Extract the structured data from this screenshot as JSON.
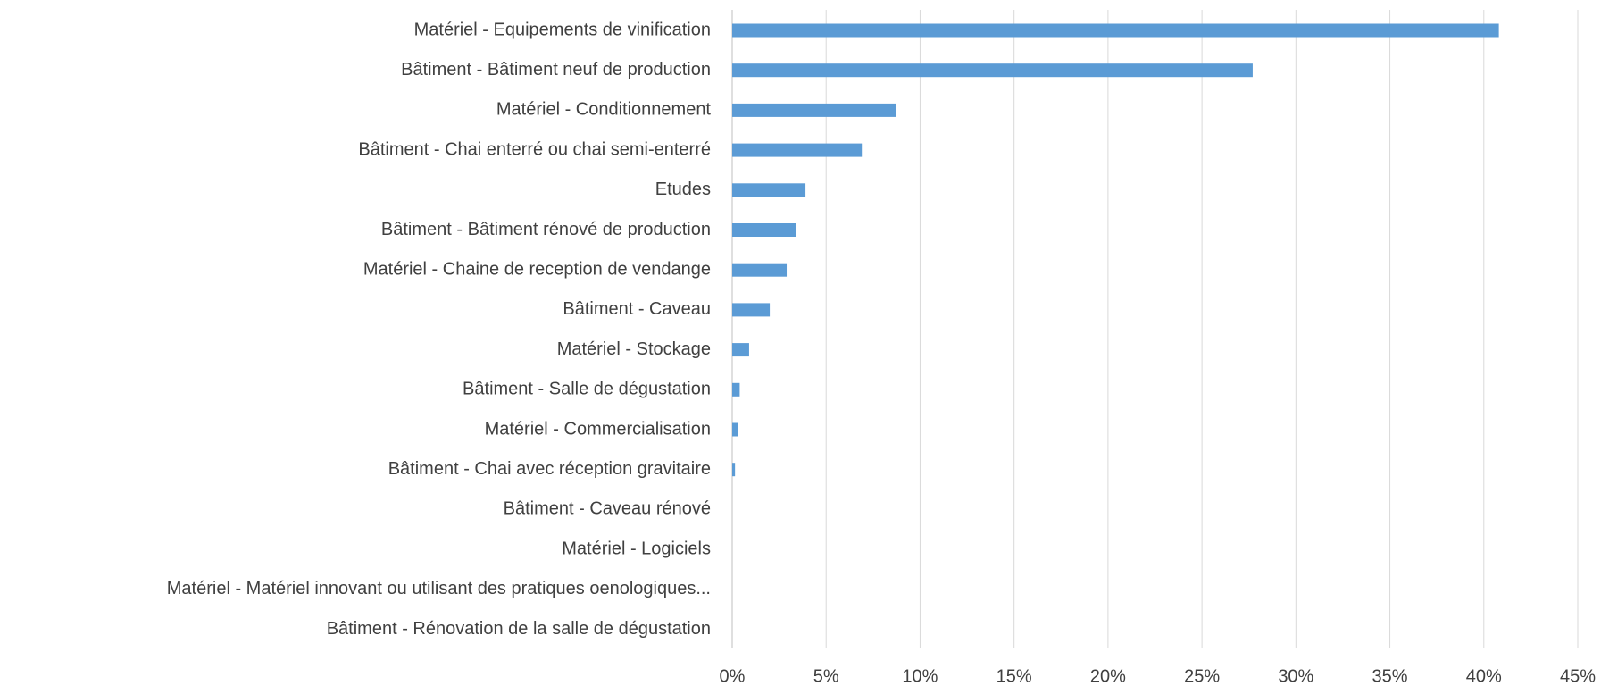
{
  "chart_data": {
    "type": "bar",
    "orientation": "horizontal",
    "categories": [
      "Matériel - Equipements de vinification",
      "Bâtiment - Bâtiment neuf de production",
      "Matériel - Conditionnement",
      "Bâtiment - Chai enterré ou chai semi-enterré",
      "Etudes",
      "Bâtiment - Bâtiment rénové de production",
      "Matériel - Chaine de reception de vendange",
      "Bâtiment - Caveau",
      "Matériel - Stockage",
      "Bâtiment - Salle de dégustation",
      "Matériel - Commercialisation",
      "Bâtiment - Chai avec réception gravitaire",
      "Bâtiment - Caveau rénové",
      "Matériel - Logiciels",
      "Matériel - Matériel innovant ou utilisant des pratiques oenologiques...",
      "Bâtiment - Rénovation de la salle de dégustation"
    ],
    "values": [
      40.8,
      27.7,
      8.7,
      6.9,
      3.9,
      3.4,
      2.9,
      2.0,
      0.9,
      0.4,
      0.3,
      0.15,
      0,
      0,
      0,
      0
    ],
    "color": "#5b9bd5",
    "xlim": [
      0,
      45
    ],
    "xticks": [
      {
        "value": 0,
        "label": "0%"
      },
      {
        "value": 5,
        "label": "5%"
      },
      {
        "value": 10,
        "label": "10%"
      },
      {
        "value": 15,
        "label": "15%"
      },
      {
        "value": 20,
        "label": "20%"
      },
      {
        "value": 25,
        "label": "25%"
      },
      {
        "value": 30,
        "label": "30%"
      },
      {
        "value": 35,
        "label": "35%"
      },
      {
        "value": 40,
        "label": "40%"
      },
      {
        "value": 45,
        "label": "45%"
      }
    ],
    "grid": true
  }
}
